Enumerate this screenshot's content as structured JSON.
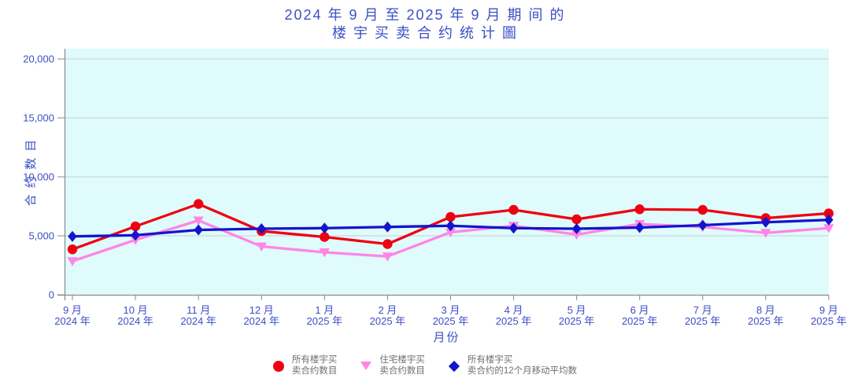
{
  "title": {
    "line1": "2024 年 9 月 至 2025 年 9 月 期 间 的",
    "line2": "楼 宇 买 卖 合 约 统 计 圖"
  },
  "chart_data": {
    "type": "line",
    "title": "2024年9月至2025年9月期间的楼宇买卖合约统计圖",
    "xlabel": "月份",
    "ylabel": "合 约 数 目",
    "ylim": [
      0,
      20000
    ],
    "grid": true,
    "legend_position": "bottom",
    "plot_bg": "#dffbfb",
    "grid_color": "#ccd9d9",
    "axis_color": "#8a8a8a",
    "axis_text_color": "#3c4fc5",
    "y_ticks": [
      {
        "value": 0,
        "label": "0"
      },
      {
        "value": 5000,
        "label": "5,000"
      },
      {
        "value": 10000,
        "label": "10,000"
      },
      {
        "value": 15000,
        "label": "15,000"
      },
      {
        "value": 20000,
        "label": "20,000"
      }
    ],
    "categories": [
      {
        "month": "9 月",
        "year": "2024 年"
      },
      {
        "month": "10 月",
        "year": "2024 年"
      },
      {
        "month": "11 月",
        "year": "2024 年"
      },
      {
        "month": "12 月",
        "year": "2024 年"
      },
      {
        "month": "1 月",
        "year": "2025 年"
      },
      {
        "month": "2 月",
        "year": "2025 年"
      },
      {
        "month": "3 月",
        "year": "2025 年"
      },
      {
        "month": "4 月",
        "year": "2025 年"
      },
      {
        "month": "5 月",
        "year": "2025 年"
      },
      {
        "month": "6 月",
        "year": "2025 年"
      },
      {
        "month": "7 月",
        "year": "2025 年"
      },
      {
        "month": "8 月",
        "year": "2025 年"
      },
      {
        "month": "9 月",
        "year": "2025 年"
      }
    ],
    "series": [
      {
        "name": "所有楼宇买卖合约数目",
        "legend_line1": "所有楼宇买",
        "legend_line2": "卖合约数目",
        "marker": "circle",
        "color": "#ee0011",
        "values": [
          3850,
          5800,
          7700,
          5400,
          4900,
          4300,
          6600,
          7200,
          6400,
          7250,
          7200,
          6500,
          6900
        ]
      },
      {
        "name": "住宅楼宇买卖合约数目",
        "legend_line1": "住宅楼宇买",
        "legend_line2": "卖合约数目",
        "marker": "triangle-down",
        "color": "#ff85e6",
        "values": [
          2850,
          4650,
          6300,
          4100,
          3600,
          3250,
          5300,
          5850,
          5100,
          6000,
          5750,
          5250,
          5650
        ]
      },
      {
        "name": "所有楼宇买卖合约的12个月移动平均数",
        "legend_line1": "所有楼宇买",
        "legend_line2": "卖合约的12个月移动平均数",
        "marker": "diamond",
        "color": "#1414cc",
        "values": [
          4950,
          5050,
          5500,
          5600,
          5650,
          5750,
          5850,
          5650,
          5600,
          5700,
          5900,
          6150,
          6350
        ]
      }
    ]
  }
}
